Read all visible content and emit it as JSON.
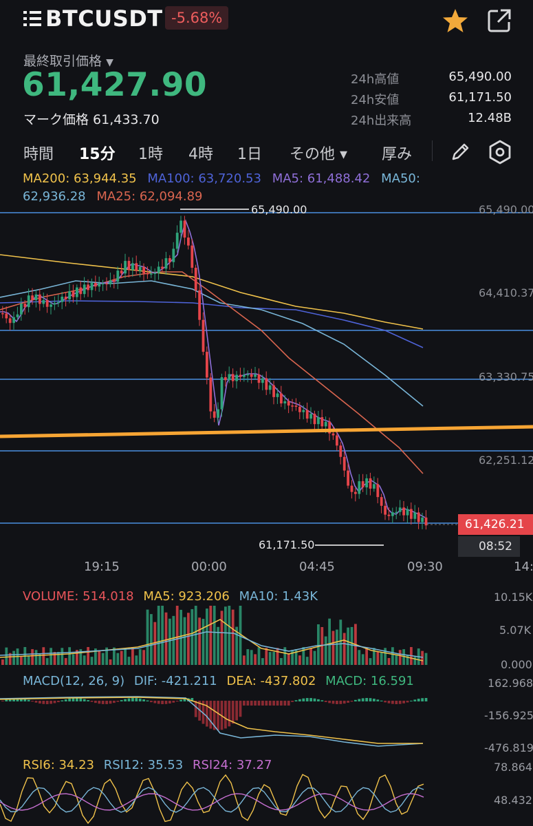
{
  "header": {
    "symbol": "BTCUSDT",
    "change": "-5.68%",
    "icons": {
      "logo": "list-logo-icon",
      "favorite": "star-icon",
      "share": "share-icon"
    }
  },
  "ticker": {
    "last_label": "最終取引価格",
    "last_price": "61,427.90",
    "mark_price": "マーク価格 61,433.70",
    "stats": [
      {
        "label": "24h高値",
        "value": "65,490.00"
      },
      {
        "label": "24h安値",
        "value": "61,171.50"
      },
      {
        "label": "24h出来高",
        "value": "12.48B"
      }
    ]
  },
  "tabs": [
    {
      "label": "時間",
      "active": false
    },
    {
      "label": "15分",
      "active": true
    },
    {
      "label": "1時",
      "active": false
    },
    {
      "label": "4時",
      "active": false
    },
    {
      "label": "1日",
      "active": false
    },
    {
      "label": "その他 ▾",
      "active": false
    },
    {
      "label": "厚み",
      "active": false
    }
  ],
  "ma_legend": [
    {
      "text": "MA200: 63,944.35",
      "color": "#f0c24b"
    },
    {
      "text": "MA100: 63,720.53",
      "color": "#4e63d8"
    },
    {
      "text": "MA5: 61,488.42",
      "color": "#8f6fd8"
    },
    {
      "text": "MA50: 62,936.28",
      "color": "#79b6d8"
    },
    {
      "text": "MA25: 62,094.89",
      "color": "#d9654f"
    }
  ],
  "price_axis": [
    "65,490.00",
    "64,410.37",
    "63,330.75",
    "62,251.12"
  ],
  "markers": {
    "high": "65,490.00",
    "low": "61,171.50"
  },
  "current_price_badge": "61,426.21",
  "countdown": "08:52",
  "time_axis": [
    "19:15",
    "00:00",
    "04:45",
    "09:30",
    "14:"
  ],
  "volume": {
    "legend": [
      {
        "text": "VOLUME: 514.018",
        "color": "#e8555a"
      },
      {
        "text": "MA5: 923.206",
        "color": "#f0c24b"
      },
      {
        "text": "MA10: 1.43K",
        "color": "#79b6d8"
      }
    ],
    "axis": [
      "10.15K",
      "5.07K",
      "0.000"
    ]
  },
  "macd": {
    "legend": [
      {
        "text": "MACD(12, 26, 9)",
        "color": "#79b6d8"
      },
      {
        "text": "DIF: -421.211",
        "color": "#79b6d8"
      },
      {
        "text": "DEA: -437.802",
        "color": "#f0c24b"
      },
      {
        "text": "MACD: 16.591",
        "color": "#3fb87f"
      }
    ],
    "axis": [
      "162.968",
      "-156.925",
      "-476.819"
    ]
  },
  "rsi": {
    "legend": [
      {
        "text": "RSI6: 34.23",
        "color": "#f0c24b"
      },
      {
        "text": "RSI12: 35.53",
        "color": "#79b6d8"
      },
      {
        "text": "RSI24: 37.27",
        "color": "#c56fd0"
      }
    ],
    "axis": [
      "78.864",
      "48.432"
    ]
  },
  "colors": {
    "up": "#2fa37a",
    "down": "#e5454a",
    "grid": "#4a8fe0",
    "trendline": "#f7a534"
  }
}
